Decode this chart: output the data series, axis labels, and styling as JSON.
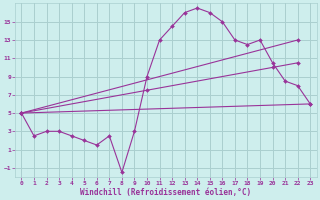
{
  "xlabel": "Windchill (Refroidissement éolien,°C)",
  "background_color": "#ceeeed",
  "grid_color": "#aacfcf",
  "line_color": "#993399",
  "xlim": [
    -0.5,
    23.5
  ],
  "ylim": [
    -2,
    17
  ],
  "yticks": [
    -1,
    1,
    3,
    5,
    7,
    9,
    11,
    13,
    15
  ],
  "xticks": [
    0,
    1,
    2,
    3,
    4,
    5,
    6,
    7,
    8,
    9,
    10,
    11,
    12,
    13,
    14,
    15,
    16,
    17,
    18,
    19,
    20,
    21,
    22,
    23
  ],
  "lines": [
    {
      "x": [
        0,
        1,
        2,
        3,
        4,
        5,
        6,
        7,
        8,
        9,
        10,
        11,
        12,
        13,
        14,
        15,
        16,
        17,
        18,
        19,
        20,
        21,
        22,
        23
      ],
      "y": [
        5,
        2.5,
        3,
        3,
        2.5,
        2,
        1.5,
        2.5,
        -1.5,
        3,
        9,
        13,
        14.5,
        16,
        16.5,
        16,
        15,
        13,
        12.5,
        13,
        10.5,
        8.5,
        8,
        6
      ],
      "markers": true
    },
    {
      "x": [
        0,
        22
      ],
      "y": [
        5,
        13
      ],
      "markers": true
    },
    {
      "x": [
        0,
        10,
        20,
        22
      ],
      "y": [
        5,
        7.5,
        10,
        10.5
      ],
      "markers": true
    },
    {
      "x": [
        0,
        23
      ],
      "y": [
        5,
        6
      ],
      "markers": true
    }
  ]
}
